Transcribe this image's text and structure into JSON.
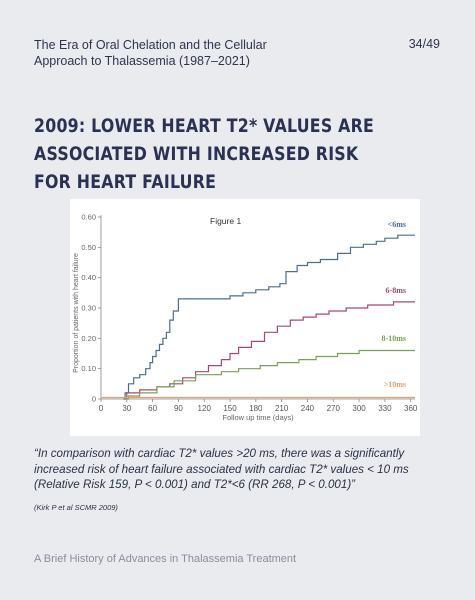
{
  "header": {
    "title": "The Era of Oral Chelation and the Cellular\nApproach to Thalassemia  (1987–2021)",
    "page": "34/49"
  },
  "slide_title": "2009: Lower heart T2* values are associated with increased risk for heart failure",
  "chart_data": {
    "type": "line",
    "figure_label": "Figure 1",
    "xlabel": "Follow up time (days)",
    "ylabel": "Proportion of patients with heart failure",
    "xlim": [
      0,
      365
    ],
    "ylim": [
      0,
      0.6
    ],
    "x_ticks": [
      0,
      30,
      60,
      90,
      120,
      150,
      180,
      210,
      240,
      270,
      300,
      330,
      360
    ],
    "y_ticks": [
      "0",
      "0.10",
      "0.20",
      "0.30",
      "0.40",
      "0.50",
      "0.60"
    ],
    "y_tick_values": [
      0,
      0.1,
      0.2,
      0.3,
      0.4,
      0.5,
      0.6
    ],
    "grid": false,
    "series": [
      {
        "name": "<6ms",
        "color": "#4b6e90",
        "points": [
          [
            26,
            0
          ],
          [
            28,
            0.02
          ],
          [
            32,
            0.05
          ],
          [
            38,
            0.07
          ],
          [
            45,
            0.08
          ],
          [
            52,
            0.1
          ],
          [
            57,
            0.12
          ],
          [
            60,
            0.14
          ],
          [
            64,
            0.16
          ],
          [
            68,
            0.18
          ],
          [
            72,
            0.2
          ],
          [
            76,
            0.22
          ],
          [
            80,
            0.26
          ],
          [
            84,
            0.29
          ],
          [
            90,
            0.33
          ],
          [
            140,
            0.33
          ],
          [
            150,
            0.34
          ],
          [
            165,
            0.35
          ],
          [
            180,
            0.36
          ],
          [
            195,
            0.37
          ],
          [
            208,
            0.38
          ],
          [
            215,
            0.42
          ],
          [
            228,
            0.44
          ],
          [
            240,
            0.45
          ],
          [
            255,
            0.46
          ],
          [
            275,
            0.48
          ],
          [
            290,
            0.5
          ],
          [
            305,
            0.51
          ],
          [
            320,
            0.52
          ],
          [
            330,
            0.53
          ],
          [
            345,
            0.54
          ],
          [
            365,
            0.54
          ]
        ]
      },
      {
        "name": "6-8ms",
        "color": "#a74b63",
        "points": [
          [
            26,
            0
          ],
          [
            30,
            0.02
          ],
          [
            45,
            0.03
          ],
          [
            65,
            0.04
          ],
          [
            80,
            0.05
          ],
          [
            95,
            0.07
          ],
          [
            110,
            0.09
          ],
          [
            125,
            0.11
          ],
          [
            140,
            0.13
          ],
          [
            150,
            0.15
          ],
          [
            160,
            0.17
          ],
          [
            175,
            0.19
          ],
          [
            190,
            0.22
          ],
          [
            205,
            0.24
          ],
          [
            220,
            0.26
          ],
          [
            235,
            0.27
          ],
          [
            250,
            0.28
          ],
          [
            265,
            0.29
          ],
          [
            285,
            0.3
          ],
          [
            310,
            0.31
          ],
          [
            340,
            0.32
          ],
          [
            365,
            0.32
          ]
        ]
      },
      {
        "name": "8-10ms",
        "color": "#78a158",
        "points": [
          [
            26,
            0
          ],
          [
            32,
            0.01
          ],
          [
            45,
            0.02
          ],
          [
            65,
            0.04
          ],
          [
            85,
            0.06
          ],
          [
            110,
            0.08
          ],
          [
            140,
            0.09
          ],
          [
            160,
            0.1
          ],
          [
            185,
            0.11
          ],
          [
            205,
            0.12
          ],
          [
            230,
            0.13
          ],
          [
            250,
            0.14
          ],
          [
            275,
            0.15
          ],
          [
            300,
            0.16
          ],
          [
            330,
            0.16
          ],
          [
            365,
            0.16
          ]
        ]
      },
      {
        "name": ">10ms",
        "color": "#e4a070",
        "points": [
          [
            0,
            0.005
          ],
          [
            365,
            0.005
          ]
        ]
      }
    ]
  },
  "quote": "“In comparison with cardiac T2* values >20 ms, there was a significantly increased risk of heart failure associated with cardiac T2* values < 10 ms (Relative Risk 159, P < 0.001) and T2*<6 (RR 268, P < 0.001)”",
  "citation": "(Kirk P et al SCMR 2009)",
  "footer": "A Brief History of Advances in Thalassemia Treatment"
}
